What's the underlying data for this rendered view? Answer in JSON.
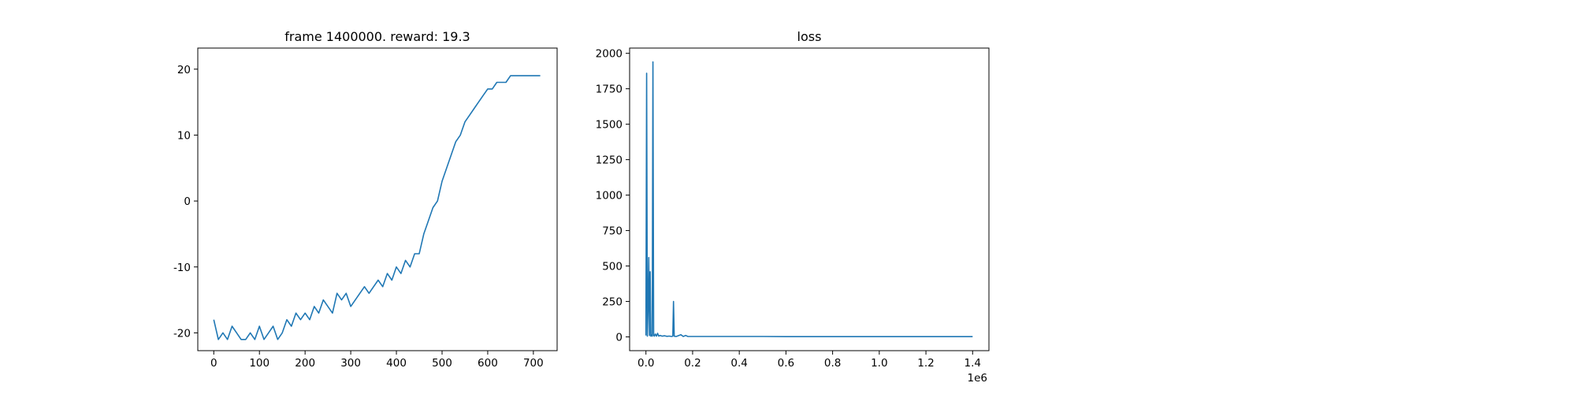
{
  "figure": {
    "background": "#ffffff"
  },
  "chart_data": [
    {
      "type": "line",
      "title": "frame 1400000. reward: 19.3",
      "xlabel": "",
      "ylabel": "",
      "xlim": [
        -35,
        752
      ],
      "ylim": [
        -22.7,
        23.2
      ],
      "xticks": [
        0,
        100,
        200,
        300,
        400,
        500,
        600,
        700
      ],
      "yticks": [
        -20,
        -10,
        0,
        10,
        20
      ],
      "grid": false,
      "color": "#1f77b4",
      "series": [
        {
          "x": [
            0,
            10,
            20,
            30,
            40,
            50,
            60,
            70,
            80,
            90,
            100,
            110,
            120,
            130,
            140,
            150,
            160,
            170,
            180,
            190,
            200,
            210,
            220,
            230,
            240,
            250,
            260,
            270,
            280,
            290,
            300,
            310,
            320,
            330,
            340,
            350,
            360,
            370,
            380,
            390,
            400,
            410,
            420,
            430,
            440,
            450,
            460,
            470,
            480,
            490,
            500,
            510,
            520,
            530,
            540,
            550,
            560,
            570,
            580,
            590,
            600,
            610,
            620,
            630,
            640,
            650,
            660,
            670,
            680,
            690,
            700,
            710,
            715
          ],
          "values": [
            -18,
            -21,
            -20,
            -21,
            -19,
            -20,
            -21,
            -21,
            -20,
            -21,
            -19,
            -21,
            -20,
            -19,
            -21,
            -20,
            -18,
            -19,
            -17,
            -18,
            -17,
            -18,
            -16,
            -17,
            -15,
            -16,
            -17,
            -14,
            -15,
            -14,
            -16,
            -15,
            -14,
            -13,
            -14,
            -13,
            -12,
            -13,
            -11,
            -12,
            -10,
            -11,
            -9,
            -10,
            -8,
            -8,
            -5,
            -3,
            -1,
            0,
            3,
            5,
            7,
            9,
            10,
            12,
            13,
            14,
            15,
            16,
            17,
            17,
            18,
            18,
            18,
            19,
            19,
            19,
            19,
            19,
            19,
            19,
            19
          ]
        }
      ]
    },
    {
      "type": "line",
      "title": "loss",
      "xlabel": "",
      "ylabel": "",
      "xlim": [
        -70000,
        1470000
      ],
      "ylim": [
        -97,
        2037
      ],
      "xticks": [
        0,
        200000,
        400000,
        600000,
        800000,
        1000000,
        1200000,
        1400000
      ],
      "xtick_labels": [
        "0.0",
        "0.2",
        "0.4",
        "0.6",
        "0.8",
        "1.0",
        "1.2",
        "1.4"
      ],
      "x_offset_label": "1e6",
      "yticks": [
        0,
        250,
        500,
        750,
        1000,
        1250,
        1500,
        1750,
        2000
      ],
      "grid": false,
      "color": "#1f77b4",
      "series": [
        {
          "x": [
            0,
            3000,
            6000,
            9000,
            12000,
            15000,
            18000,
            21000,
            24000,
            27000,
            30000,
            33000,
            36000,
            40000,
            45000,
            50000,
            55000,
            60000,
            70000,
            80000,
            90000,
            100000,
            110000,
            115000,
            118000,
            121000,
            124000,
            130000,
            150000,
            160000,
            170000,
            180000,
            200000,
            250000,
            300000,
            400000,
            500000,
            600000,
            700000,
            800000,
            900000,
            1000000,
            1100000,
            1200000,
            1300000,
            1400000
          ],
          "values": [
            10,
            1860,
            5,
            200,
            560,
            10,
            460,
            5,
            15,
            5,
            1940,
            10,
            5,
            20,
            5,
            25,
            5,
            10,
            5,
            8,
            4,
            6,
            3,
            5,
            250,
            5,
            4,
            3,
            15,
            3,
            10,
            3,
            3,
            3,
            3,
            3,
            3,
            2,
            2,
            2,
            2,
            2,
            2,
            2,
            2,
            2
          ]
        }
      ]
    }
  ]
}
